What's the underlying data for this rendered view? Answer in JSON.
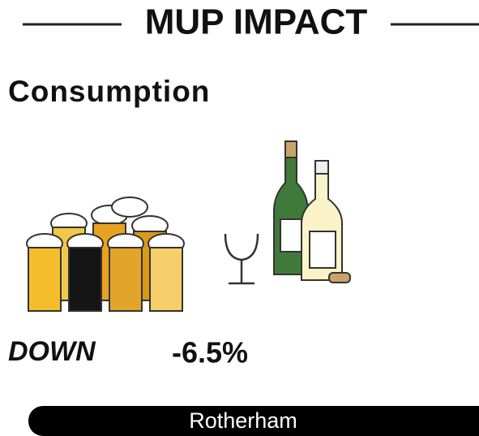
{
  "header": {
    "title": "MUP IMPACT"
  },
  "section": {
    "heading": "Consumption",
    "direction": "DOWN",
    "change": "-6.5%"
  },
  "footer": {
    "location": "Rotherham"
  }
}
